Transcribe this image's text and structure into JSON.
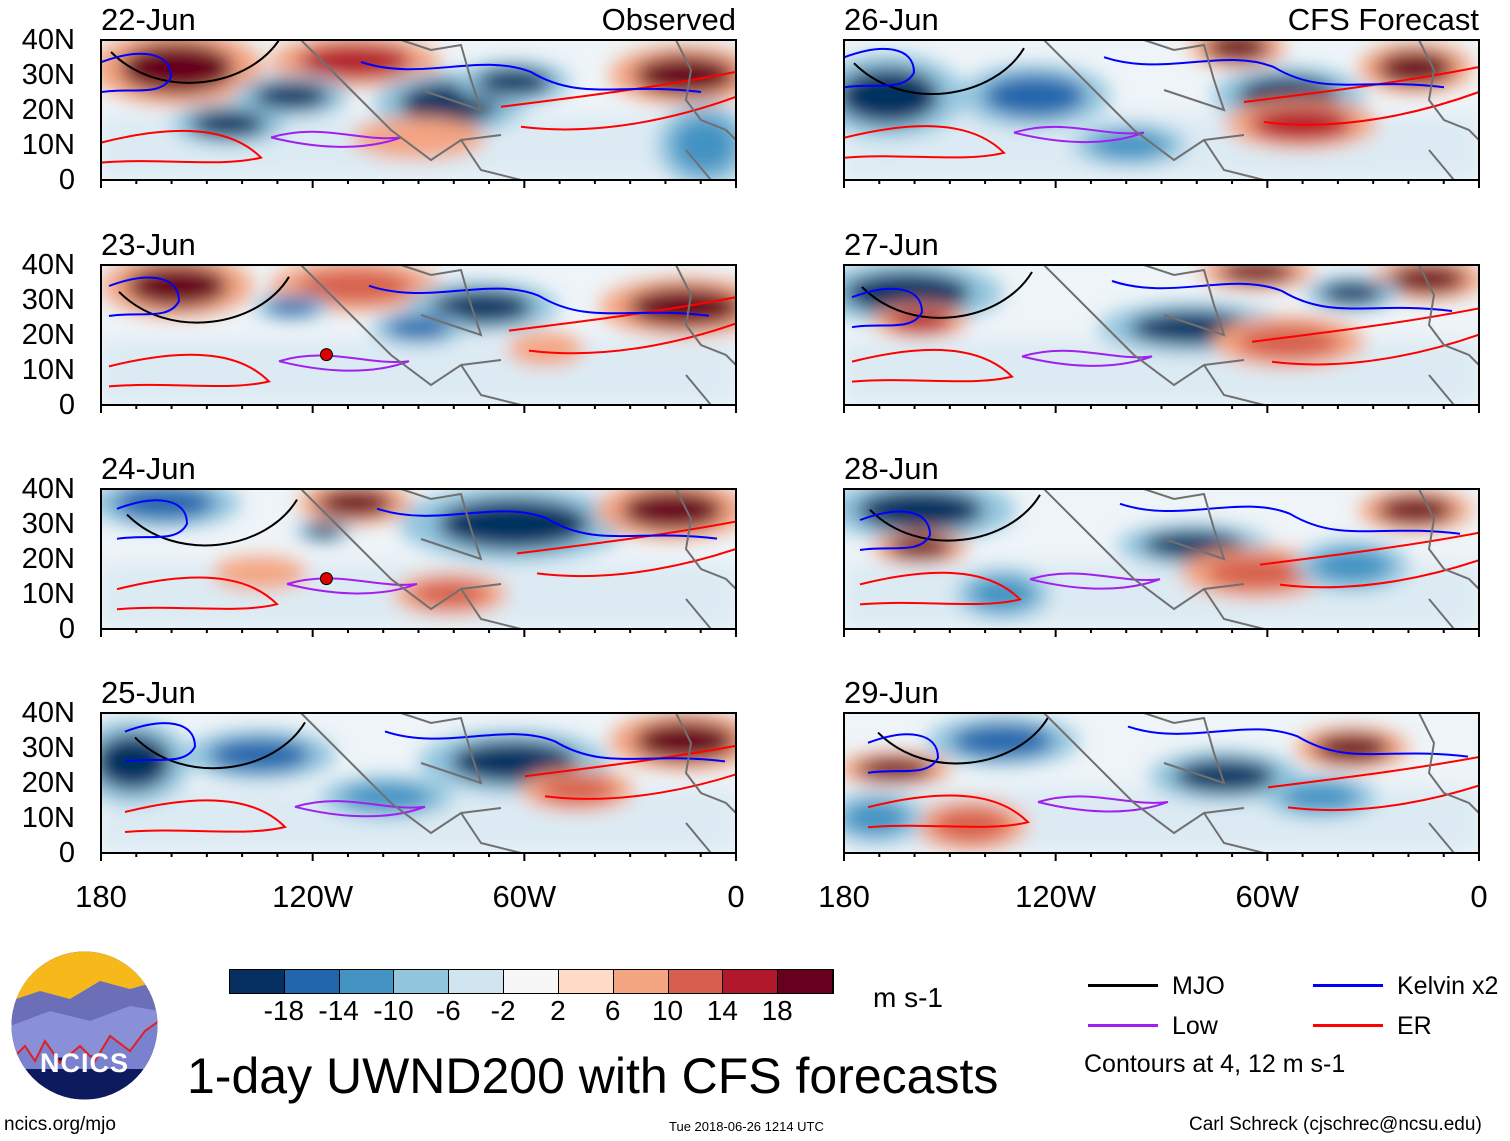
{
  "panels": [
    {
      "date": "22-Jun",
      "label": "Observed",
      "type": "observed"
    },
    {
      "date": "23-Jun",
      "type": "observed",
      "storm_marker": "D"
    },
    {
      "date": "24-Jun",
      "type": "observed",
      "storm_marker": "D"
    },
    {
      "date": "25-Jun",
      "type": "observed"
    },
    {
      "date": "26-Jun",
      "label": "CFS Forecast",
      "type": "forecast"
    },
    {
      "date": "27-Jun",
      "type": "forecast"
    },
    {
      "date": "28-Jun",
      "type": "forecast"
    },
    {
      "date": "29-Jun",
      "type": "forecast"
    }
  ],
  "lat_labels": [
    "40N",
    "30N",
    "20N",
    "10N",
    "0"
  ],
  "lon_labels": [
    "180",
    "120W",
    "60W",
    "0"
  ],
  "colorbar": {
    "colors": [
      "#053061",
      "#2166ac",
      "#4393c3",
      "#92c5de",
      "#d1e5f0",
      "#f7f7f7",
      "#fddbc7",
      "#f4a582",
      "#d6604d",
      "#b2182b",
      "#67001f"
    ],
    "labels": [
      "-18",
      "-14",
      "-10",
      "-6",
      "-2",
      "2",
      "6",
      "10",
      "14",
      "18"
    ],
    "units": "m s-1"
  },
  "legend": {
    "items": [
      {
        "label": "MJO",
        "color": "#000000"
      },
      {
        "label": "Kelvin x2",
        "color": "#0000ff"
      },
      {
        "label": "Low",
        "color": "#a020f0"
      },
      {
        "label": "ER",
        "color": "#ff0000"
      }
    ],
    "note": "Contours at 4, 12 m s-1"
  },
  "logo": {
    "text": "NCICS"
  },
  "title": "1-day UWND200 with CFS forecasts",
  "footer": {
    "left": "ncics.org/mjo",
    "center": "Tue 2018-06-26 1214 UTC",
    "right": "Carl Schreck (cjschrec@ncsu.edu)"
  }
}
